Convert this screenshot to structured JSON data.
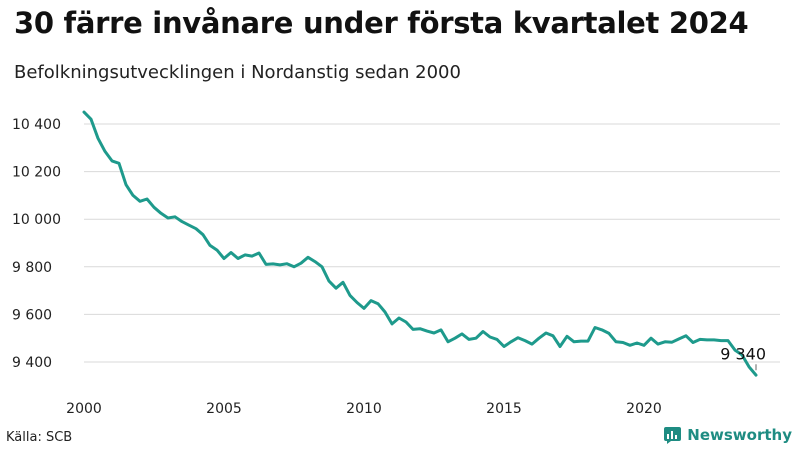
{
  "header": {
    "title": "30 färre invånare under första kvartalet 2024",
    "subtitle": "Befolkningsutvecklingen i Nordanstig sedan 2000"
  },
  "footer": {
    "source": "Källa: SCB",
    "brand": "Newsworthy"
  },
  "colors": {
    "line": "#1e9a8c",
    "grid": "#d9d9d9",
    "brand": "#1e8c82"
  },
  "chart_data": {
    "type": "line",
    "title": "30 färre invånare under första kvartalet 2024",
    "subtitle": "Befolkningsutvecklingen i Nordanstig sedan 2000",
    "xlabel": "",
    "ylabel": "",
    "grid": "horizontal",
    "xlim": [
      2000,
      2024.25
    ],
    "ylim": [
      9320,
      10470
    ],
    "x_ticks": [
      2000,
      2005,
      2010,
      2015,
      2020
    ],
    "x_tick_labels": [
      "2000",
      "2005",
      "2010",
      "2015",
      "2020"
    ],
    "y_ticks": [
      9400,
      9600,
      9800,
      10000,
      10200,
      10400
    ],
    "y_tick_labels": [
      "9 400",
      "9 600",
      "9 800",
      "10 000",
      "10 200",
      "10 400"
    ],
    "series": [
      {
        "x_start": 2000.0,
        "x_step": 0.25,
        "values": [
          10450,
          10420,
          10340,
          10285,
          10245,
          10235,
          10145,
          10100,
          10075,
          10085,
          10050,
          10025,
          10005,
          10010,
          9990,
          9975,
          9960,
          9935,
          9890,
          9870,
          9835,
          9860,
          9835,
          9850,
          9845,
          9858,
          9810,
          9812,
          9808,
          9813,
          9800,
          9815,
          9840,
          9822,
          9800,
          9740,
          9710,
          9735,
          9680,
          9650,
          9625,
          9658,
          9645,
          9610,
          9560,
          9585,
          9568,
          9537,
          9540,
          9530,
          9522,
          9535,
          9485,
          9500,
          9518,
          9495,
          9500,
          9528,
          9505,
          9495,
          9465,
          9485,
          9502,
          9490,
          9475,
          9500,
          9522,
          9510,
          9465,
          9508,
          9485,
          9488,
          9488,
          9545,
          9535,
          9520,
          9485,
          9482,
          9470,
          9480,
          9470,
          9500,
          9475,
          9485,
          9483,
          9497,
          9510,
          9482,
          9495,
          9493,
          9493,
          9490,
          9490,
          9450,
          9430,
          9380,
          9345
        ]
      }
    ],
    "annotations": [
      {
        "x": 2024.0,
        "y": 9340,
        "text": "9 340"
      }
    ]
  }
}
